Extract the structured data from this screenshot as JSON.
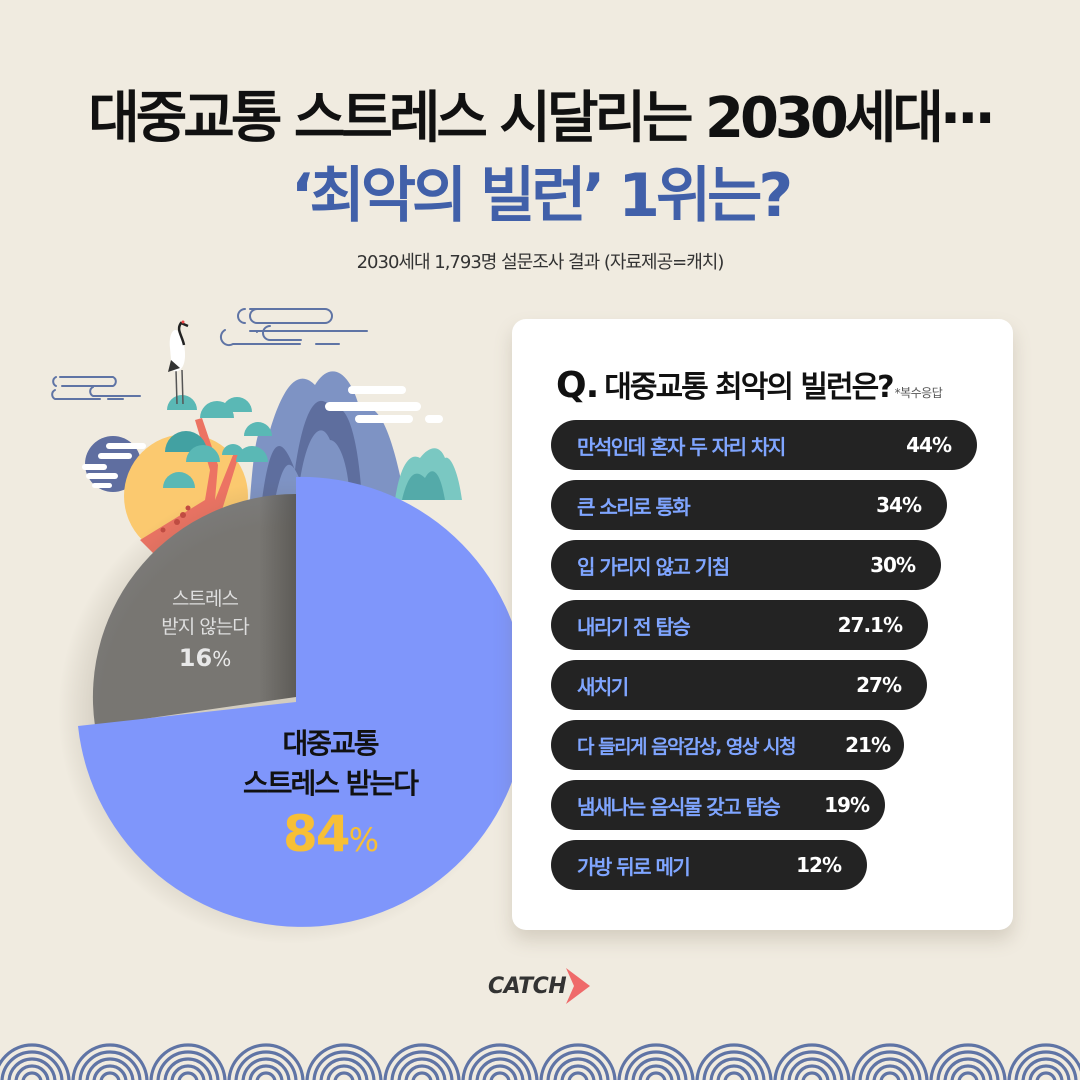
{
  "header": {
    "title_line1": "대중교통 스트레스 시달리는 2030세대···",
    "title_line2": "‘최악의 빌런’ 1위는?",
    "subtitle": "2030세대 1,793명 설문조사 결과 (자료제공=캐치)"
  },
  "pie": {
    "stressed_label_line1": "대중교통",
    "stressed_label_line2": "스트레스 받는다",
    "stressed_value": "84",
    "not_stressed_label_line1": "스트레스",
    "not_stressed_label_line2": "받지 않는다",
    "not_stressed_value": "16",
    "percent_symbol": "%"
  },
  "card": {
    "q_prefix": "Q.",
    "question": "대중교통 최악의 빌런은?",
    "note": "*복수응답",
    "bars": [
      {
        "label": "만석인데 혼자 두 자리 차지",
        "value": "44%"
      },
      {
        "label": "큰 소리로 통화",
        "value": "34%"
      },
      {
        "label": "입 가리지 않고 기침",
        "value": "30%"
      },
      {
        "label": "내리기 전 탑승",
        "value": "27.1%"
      },
      {
        "label": "새치기",
        "value": "27%"
      },
      {
        "label": "다 들리게 음악감상, 영상 시청",
        "value": "21%"
      },
      {
        "label": "냄새나는 음식물 갖고 탑승",
        "value": "19%"
      },
      {
        "label": "가방 뒤로 메기",
        "value": "12%"
      }
    ]
  },
  "footer": {
    "logo": "CATCH"
  },
  "colors": {
    "background": "#f0ebe0",
    "title_blue": "#4160a9",
    "pie_blue": "#7f96fb",
    "pie_gray": "#7d7d7d",
    "accent_yellow": "#f7bf36",
    "bar_bg": "#232323",
    "bar_label": "#7fa5ff",
    "logo_red": "#ef6a6a",
    "wave_blue": "#5f74a5"
  },
  "chart_data": [
    {
      "type": "pie",
      "title": "대중교통 스트레스",
      "categories": [
        "대중교통 스트레스 받는다",
        "스트레스 받지 않는다"
      ],
      "values": [
        84,
        16
      ],
      "unit": "%"
    },
    {
      "type": "bar",
      "orientation": "horizontal",
      "title": "Q. 대중교통 최악의 빌런은? (*복수응답)",
      "categories": [
        "만석인데 혼자 두 자리 차지",
        "큰 소리로 통화",
        "입 가리지 않고 기침",
        "내리기 전 탑승",
        "새치기",
        "다 들리게 음악감상, 영상 시청",
        "냄새나는 음식물 갖고 탑승",
        "가방 뒤로 메기"
      ],
      "values": [
        44,
        34,
        30,
        27.1,
        27,
        21,
        19,
        12
      ],
      "unit": "%",
      "source": "2030세대 1,793명 설문조사 결과 (자료제공=캐치)"
    }
  ]
}
